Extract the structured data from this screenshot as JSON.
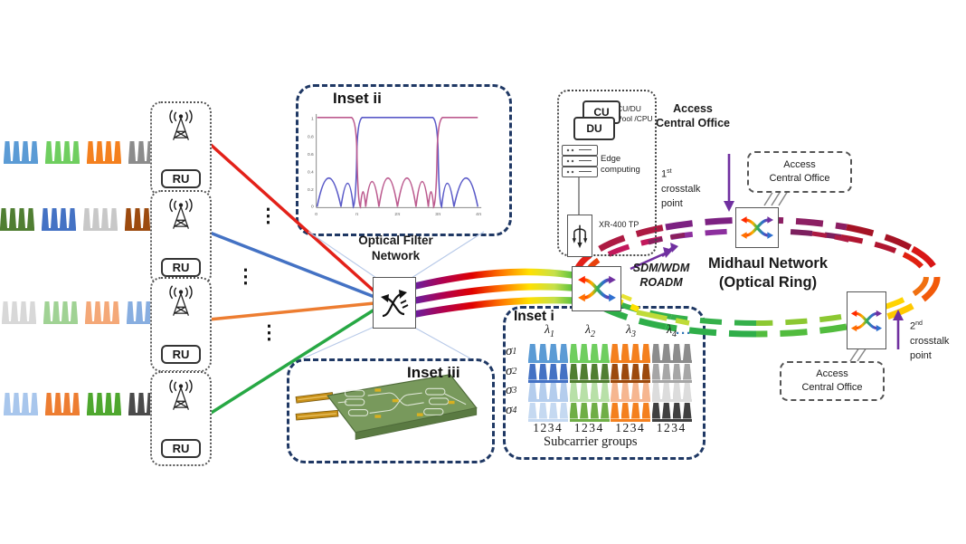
{
  "left_side": {
    "ru_label": "RU",
    "rows": [
      {
        "combs": [
          "#5b9bd5",
          "#6fce5f",
          "#f4801e",
          "#8c8c8c"
        ],
        "line_color": "#e32119"
      },
      {
        "combs": [
          "#507e32",
          "#4472c4",
          "#c8c8c8",
          "#9c4a0e"
        ],
        "line_color": "#4472c4"
      },
      {
        "combs": [
          "#d8d8d8",
          "#a0d294",
          "#f4a878",
          "#88aee0"
        ],
        "line_color": "#ed7d31"
      },
      {
        "combs": [
          "#a8c6ec",
          "#ed7d31",
          "#4ea72e",
          "#4a4a4a"
        ],
        "line_color": "#27a844"
      }
    ]
  },
  "misc": {
    "vdots": "⋮"
  },
  "filter": {
    "label_line1": "Optical Filter",
    "label_line2": "Network"
  },
  "inset_ii": {
    "label": "Inset ii",
    "x_ticks": [
      "0",
      "π",
      "2π",
      "3π",
      "4π"
    ],
    "y_ticks": [
      "1",
      "0.8",
      "0.6",
      "0.4",
      "0.2",
      "0"
    ],
    "curve_colors": {
      "blue": "#5a5ac8",
      "pink": "#bc5b8f"
    }
  },
  "inset_iii": {
    "label": "Inset iii"
  },
  "inset_i": {
    "label": "Inset i",
    "lambdas": [
      "1",
      "2",
      "3",
      "4"
    ],
    "ellipsis": "···",
    "rows": [
      {
        "sigma": "1",
        "combs": [
          "#5b9bd5",
          "#6fce5f",
          "#f4801e",
          "#8c8c8c"
        ]
      },
      {
        "sigma": "2",
        "combs": [
          "#4472c4",
          "#507e32",
          "#9c4a0e",
          "#a6a6a6"
        ]
      },
      {
        "sigma": "3",
        "combs": [
          "#b4cded",
          "#b8e0a8",
          "#f6b690",
          "#dcdcdc"
        ]
      },
      {
        "sigma": "4",
        "combs": [
          "#c5d9f1",
          "#6fae46",
          "#f4801e",
          "#404040"
        ]
      }
    ],
    "col_footer": [
      "1234",
      "1234",
      "1234",
      "1234"
    ],
    "caption": "Subcarrier groups"
  },
  "office": {
    "cu": "CU",
    "du": "DU",
    "pool_line1": "CU/DU",
    "pool_line2": "Pool /CPU",
    "edge_line1": "Edge",
    "edge_line2": "computing",
    "xr": "XR-400 TP"
  },
  "access_office": {
    "line1": "Access",
    "line2": "Central Office"
  },
  "crosstalk_1": {
    "num": "1",
    "sup": "st",
    "word1": "crosstalk",
    "word2": "point"
  },
  "crosstalk_2": {
    "num": "2",
    "sup": "nd",
    "word1": "crosstalk",
    "word2": "point"
  },
  "roadm_label": {
    "line1": "SDM/WDM",
    "line2": "ROADM"
  },
  "midhaul": {
    "line1": "Midhaul Network",
    "line2": "(Optical Ring)"
  },
  "palette": {
    "purple_arrow": "#7030a0",
    "inset_border": "#1f3864",
    "callout": "#b7c9e8"
  },
  "ring": {
    "outer_colors": [
      "#e32119",
      "#ad1a42",
      "#7c2182",
      "#8c1f63",
      "#a51325",
      "#d81616",
      "#f25a0a",
      "#ffc800",
      "#52bc3e",
      "#2fae49",
      "#2fae49",
      "#35b54a"
    ],
    "inner_colors": [
      "#e8420c",
      "#c2185b",
      "#8c2f9e",
      "#7c1f5e",
      "#b01530",
      "#e02010",
      "#f07010",
      "#ffd400",
      "#8cc832",
      "#35b04a",
      "#35b04a",
      "#3ab54a"
    ]
  }
}
